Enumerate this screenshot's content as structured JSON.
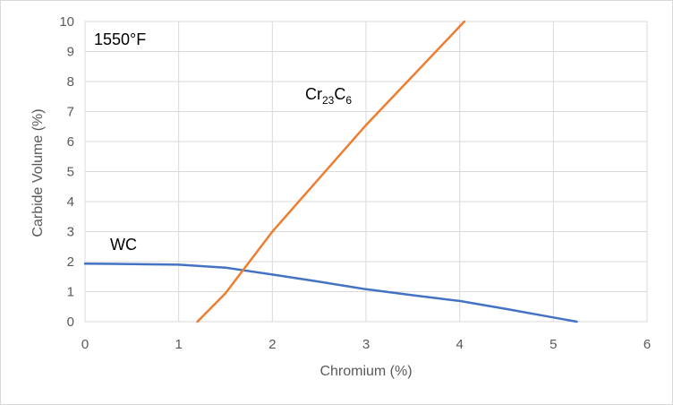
{
  "chart_data": {
    "type": "line",
    "title": "",
    "xlabel": "Chromium (%)",
    "ylabel": "Carbide Volume (%)",
    "xlim": [
      0,
      6
    ],
    "ylim": [
      0,
      10
    ],
    "xticks": [
      "0",
      "1",
      "2",
      "3",
      "4",
      "5",
      "6"
    ],
    "yticks": [
      "0",
      "1",
      "2",
      "3",
      "4",
      "5",
      "6",
      "7",
      "8",
      "9",
      "10"
    ],
    "grid": true,
    "legend": "none",
    "annotations": {
      "temperature": "1550°F",
      "wc_label": "WC",
      "cr_label_base": "Cr",
      "cr_label_sub1": "23",
      "cr_label_mid": "C",
      "cr_label_sub2": "6"
    },
    "series": [
      {
        "color": "#4472c4",
        "x": [
          0,
          0.5,
          1.0,
          1.5,
          2.0,
          2.5,
          3.0,
          3.5,
          4.0,
          4.5,
          5.0,
          5.25
        ],
        "y": [
          1.93,
          1.92,
          1.9,
          1.8,
          1.57,
          1.33,
          1.08,
          0.88,
          0.69,
          0.42,
          0.14,
          0
        ]
      },
      {
        "color": "#ed7d31",
        "x": [
          1.2,
          1.5,
          2.0,
          3.0,
          4.05
        ],
        "y": [
          0,
          0.95,
          3.0,
          6.55,
          10.0
        ]
      }
    ]
  }
}
